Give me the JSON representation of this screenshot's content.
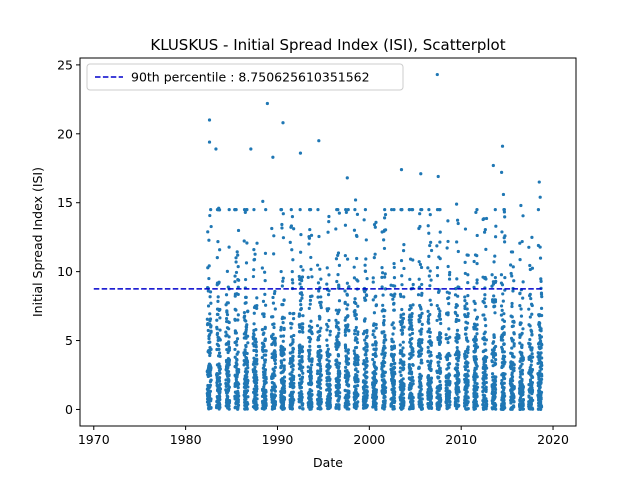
{
  "chart_data": {
    "type": "scatter",
    "title": "KLUSKUS - Initial Spread Index (ISI), Scatterplot",
    "xlabel": "Date",
    "ylabel": "Initial Spread Index (ISI)",
    "xlim": [
      1968.5,
      2022.5
    ],
    "ylim": [
      -1.2,
      25.5
    ],
    "xticks": [
      1970,
      1980,
      1990,
      2000,
      2010,
      2020
    ],
    "xtick_labels": [
      "1970",
      "1980",
      "1990",
      "2000",
      "2010",
      "2020"
    ],
    "yticks": [
      0,
      5,
      10,
      15,
      20,
      25
    ],
    "ytick_labels": [
      "0",
      "5",
      "10",
      "15",
      "20",
      "25"
    ],
    "grid": false,
    "legend_position": "top-left",
    "point_color": "#1f77b4",
    "reference_line": {
      "label": "90th percentile : 8.750625610351562",
      "y": 8.750625610351562,
      "x_start": 1970,
      "x_end": 2019,
      "color": "#0000cc",
      "style": "dashed"
    },
    "seasons": {
      "years": [
        1982,
        1983,
        1984,
        1985,
        1986,
        1987,
        1988,
        1989,
        1990,
        1991,
        1992,
        1993,
        1994,
        1995,
        1996,
        1997,
        1998,
        1999,
        2000,
        2001,
        2002,
        2003,
        2004,
        2005,
        2006,
        2007,
        2008,
        2009,
        2010,
        2011,
        2012,
        2013,
        2014,
        2015,
        2016,
        2017,
        2018
      ],
      "season_start_fraction": 0.35,
      "season_end_fraction": 0.78,
      "points_per_season": 110
    },
    "notable_points": [
      {
        "x": 1982.6,
        "y": 21.0
      },
      {
        "x": 1982.6,
        "y": 19.4
      },
      {
        "x": 1983.3,
        "y": 18.9
      },
      {
        "x": 1987.1,
        "y": 18.9
      },
      {
        "x": 1988.9,
        "y": 22.2
      },
      {
        "x": 1989.5,
        "y": 18.3
      },
      {
        "x": 1990.6,
        "y": 20.8
      },
      {
        "x": 1992.5,
        "y": 18.6
      },
      {
        "x": 1994.5,
        "y": 19.5
      },
      {
        "x": 1997.6,
        "y": 16.8
      },
      {
        "x": 1998.5,
        "y": 15.2
      },
      {
        "x": 2003.5,
        "y": 17.4
      },
      {
        "x": 2005.6,
        "y": 17.1
      },
      {
        "x": 2007.4,
        "y": 24.3
      },
      {
        "x": 2007.5,
        "y": 16.9
      },
      {
        "x": 2013.5,
        "y": 17.7
      },
      {
        "x": 2014.4,
        "y": 17.2
      },
      {
        "x": 2014.5,
        "y": 19.1
      },
      {
        "x": 2018.5,
        "y": 16.5
      },
      {
        "x": 1983.6,
        "y": 14.6
      },
      {
        "x": 1986.5,
        "y": 14.3
      },
      {
        "x": 1988.4,
        "y": 15.1
      },
      {
        "x": 1993.5,
        "y": 14.5
      },
      {
        "x": 1995.6,
        "y": 14.0
      },
      {
        "x": 1997.5,
        "y": 14.3
      },
      {
        "x": 2009.5,
        "y": 14.9
      },
      {
        "x": 2011.6,
        "y": 14.3
      },
      {
        "x": 2014.6,
        "y": 15.6
      },
      {
        "x": 2016.5,
        "y": 14.8
      },
      {
        "x": 2018.6,
        "y": 15.4
      }
    ]
  }
}
